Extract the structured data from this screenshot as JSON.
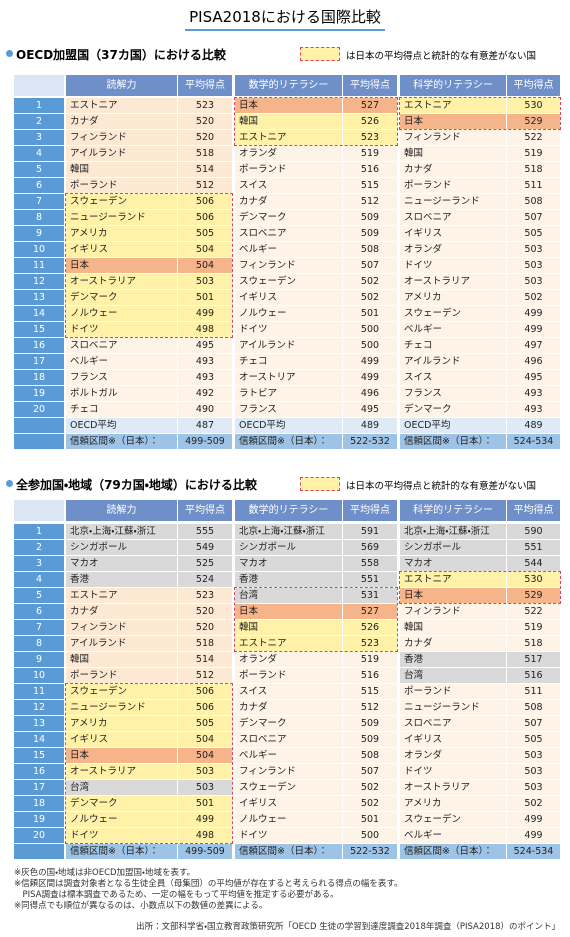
{
  "title": "PISA2018における国際比較",
  "legend_text": "は日本の平均得点と統計的な有意差がない国",
  "tables": [
    {
      "heading": "OECD加盟国（37カ国）における比較",
      "headers": [
        "読解力",
        "平均得点",
        "数学的リテラシー",
        "平均得点",
        "科学的リテラシー",
        "平均得点"
      ],
      "rows": [
        [
          1,
          "エストニア",
          523,
          "日本",
          527,
          "エストニア",
          530
        ],
        [
          2,
          "カナダ",
          520,
          "韓国",
          526,
          "日本",
          529
        ],
        [
          3,
          "フィンランド",
          520,
          "エストニア",
          523,
          "フィンランド",
          522
        ],
        [
          4,
          "アイルランド",
          518,
          "オランダ",
          519,
          "韓国",
          519
        ],
        [
          5,
          "韓国",
          514,
          "ポーランド",
          516,
          "カナダ",
          518
        ],
        [
          6,
          "ポーランド",
          512,
          "スイス",
          515,
          "ポーランド",
          511
        ],
        [
          7,
          "スウェーデン",
          506,
          "カナダ",
          512,
          "ニュージーランド",
          508
        ],
        [
          8,
          "ニュージーランド",
          506,
          "デンマーク",
          509,
          "スロベニア",
          507
        ],
        [
          9,
          "アメリカ",
          505,
          "スロベニア",
          509,
          "イギリス",
          505
        ],
        [
          10,
          "イギリス",
          504,
          "ベルギー",
          508,
          "オランダ",
          503
        ],
        [
          11,
          "日本",
          504,
          "フィンランド",
          507,
          "ドイツ",
          503
        ],
        [
          12,
          "オーストラリア",
          503,
          "スウェーデン",
          502,
          "オーストラリア",
          503
        ],
        [
          13,
          "デンマーク",
          501,
          "イギリス",
          502,
          "アメリカ",
          502
        ],
        [
          14,
          "ノルウェー",
          499,
          "ノルウェー",
          501,
          "スウェーデン",
          499
        ],
        [
          15,
          "ドイツ",
          498,
          "ドイツ",
          500,
          "ベルギー",
          499
        ],
        [
          16,
          "スロベニア",
          495,
          "アイルランド",
          500,
          "チェコ",
          497
        ],
        [
          17,
          "ベルギー",
          493,
          "チェコ",
          499,
          "アイルランド",
          496
        ],
        [
          18,
          "フランス",
          493,
          "オーストリア",
          499,
          "スイス",
          495
        ],
        [
          19,
          "ポルトガル",
          492,
          "ラトビア",
          496,
          "フランス",
          493
        ],
        [
          20,
          "チェコ",
          490,
          "フランス",
          495,
          "デンマーク",
          493
        ]
      ],
      "footer": [
        [
          "OECD平均",
          487,
          "OECD平均",
          489,
          "OECD平均",
          489
        ],
        [
          "信頼区間※（日本）：",
          "499-509",
          "信頼区間※（日本）：",
          "522-532",
          "信頼区間※（日本）：",
          "524-534"
        ]
      ]
    },
    {
      "heading": "全参加国・地域（79カ国・地域）における比較",
      "headers": [
        "読解力",
        "平均得点",
        "数学的リテラシー",
        "平均得点",
        "科学的リテラシー",
        "平均得点"
      ],
      "rows": [
        [
          1,
          "北京・上海・江蘇・浙江",
          555,
          "北京・上海・江蘇・浙江",
          591,
          "北京・上海・江蘇・浙江",
          590
        ],
        [
          2,
          "シンガポール",
          549,
          "シンガポール",
          569,
          "シンガポール",
          551
        ],
        [
          3,
          "マカオ",
          525,
          "マカオ",
          558,
          "マカオ",
          544
        ],
        [
          4,
          "香港",
          524,
          "香港",
          551,
          "エストニア",
          530
        ],
        [
          5,
          "エストニア",
          523,
          "台湾",
          531,
          "日本",
          529
        ],
        [
          6,
          "カナダ",
          520,
          "日本",
          527,
          "フィンランド",
          522
        ],
        [
          7,
          "フィンランド",
          520,
          "韓国",
          526,
          "韓国",
          519
        ],
        [
          8,
          "アイルランド",
          518,
          "エストニア",
          523,
          "カナダ",
          518
        ],
        [
          9,
          "韓国",
          514,
          "オランダ",
          519,
          "香港",
          517
        ],
        [
          10,
          "ポーランド",
          512,
          "ポーランド",
          516,
          "台湾",
          516
        ],
        [
          11,
          "スウェーデン",
          506,
          "スイス",
          515,
          "ポーランド",
          511
        ],
        [
          12,
          "ニュージーランド",
          506,
          "カナダ",
          512,
          "ニュージーランド",
          508
        ],
        [
          13,
          "アメリカ",
          505,
          "デンマーク",
          509,
          "スロベニア",
          507
        ],
        [
          14,
          "イギリス",
          504,
          "スロベニア",
          509,
          "イギリス",
          505
        ],
        [
          15,
          "日本",
          504,
          "ベルギー",
          508,
          "オランダ",
          503
        ],
        [
          16,
          "オーストラリア",
          503,
          "フィンランド",
          507,
          "ドイツ",
          503
        ],
        [
          17,
          "台湾",
          503,
          "スウェーデン",
          502,
          "オーストラリア",
          503
        ],
        [
          18,
          "デンマーク",
          501,
          "イギリス",
          502,
          "アメリカ",
          502
        ],
        [
          19,
          "ノルウェー",
          499,
          "ノルウェー",
          501,
          "スウェーデン",
          499
        ],
        [
          20,
          "ドイツ",
          498,
          "ドイツ",
          500,
          "ベルギー",
          499
        ]
      ],
      "footer": [
        [
          "信頼区間※（日本）：",
          "499-509",
          "信頼区間※（日本）：",
          "522-532",
          "信頼区間※（日本）：",
          "524-534"
        ]
      ]
    }
  ],
  "notes": [
    "※灰色の国・地域は非OECD加盟国・地域を表す。",
    "※信頼区間は調査対象者となる生徒全員（母集団）の平均値が存在すると考えられる得点の幅を表す。",
    "　PISA調査は標本調査であるため、一定の幅をもって平均値を推定する必要がある。",
    "※同得点でも順位が異なるのは、小数点以下の数値の差異による。"
  ],
  "source": "出所：文部科学省・国立教育政策研究所「OECD 生徒の学習到達度調査2018年調査（PISA2018）のポイント」"
}
